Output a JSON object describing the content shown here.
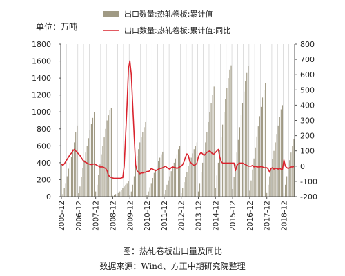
{
  "chart_data": {
    "type": "bar",
    "unit_label": "单位：万吨",
    "left_axis": {
      "min": 0,
      "max": 1800,
      "ticks": [
        "0",
        "200",
        "400",
        "600",
        "800",
        "1000",
        "1200",
        "1400",
        "1600",
        "1800"
      ]
    },
    "right_axis": {
      "min": -200,
      "max": 800,
      "ticks": [
        "-200",
        "-100",
        "0",
        "100",
        "200",
        "300",
        "400",
        "500",
        "600",
        "700",
        "800"
      ]
    },
    "x_tick_labels": [
      "2005-12",
      "2006-12",
      "2007-12",
      "2008-12",
      "2009-12",
      "2010-12",
      "2011-12",
      "2012-12",
      "2013-12",
      "2014-12",
      "2015-12",
      "2016-12",
      "2017-12",
      "2018-12"
    ],
    "legend": [
      "出口数量:热轧卷板:累计值",
      "出口数量:热轧卷板:累计值:同比"
    ],
    "series": [
      {
        "name": "出口数量:热轧卷板:累计值",
        "kind": "bar",
        "axis": "left",
        "color": "#a09a84",
        "values": [
          390,
          30,
          100,
          160,
          240,
          330,
          400,
          470,
          560,
          640,
          760,
          840,
          40,
          120,
          230,
          340,
          430,
          520,
          600,
          690,
          790,
          860,
          930,
          1000,
          60,
          140,
          260,
          380,
          500,
          600,
          700,
          800,
          900,
          960,
          1020,
          1050,
          10,
          20,
          30,
          40,
          50,
          60,
          80,
          100,
          120,
          140,
          160,
          180,
          20,
          60,
          140,
          240,
          360,
          480,
          560,
          640,
          700,
          760,
          820,
          880,
          20,
          60,
          110,
          160,
          220,
          280,
          320,
          370,
          420,
          460,
          500,
          530,
          30,
          80,
          140,
          190,
          240,
          300,
          350,
          400,
          450,
          500,
          560,
          600,
          40,
          100,
          170,
          230,
          290,
          360,
          410,
          460,
          510,
          560,
          600,
          640,
          60,
          160,
          290,
          400,
          520,
          640,
          760,
          880,
          1000,
          1100,
          1200,
          1300,
          100,
          250,
          400,
          550,
          700,
          850,
          1000,
          1150,
          1280,
          1400,
          1500,
          1550,
          90,
          230,
          380,
          520,
          670,
          820,
          960,
          1100,
          1240,
          1360,
          1460,
          1540,
          70,
          190,
          320,
          450,
          580,
          710,
          830,
          950,
          1060,
          1170,
          1260,
          1340,
          50,
          140,
          240,
          340,
          440,
          540,
          640,
          740,
          840,
          940,
          1030,
          1080,
          40,
          140,
          240,
          340,
          430,
          520,
          600,
          680
        ]
      },
      {
        "name": "出口数量:热轧卷板:累计值:同比",
        "kind": "line",
        "axis": "right",
        "color": "#d9232d",
        "values": [
          15,
          5,
          15,
          30,
          45,
          60,
          75,
          85,
          100,
          110,
          100,
          90,
          80,
          70,
          55,
          40,
          30,
          25,
          20,
          15,
          12,
          10,
          12,
          15,
          10,
          5,
          0,
          -5,
          -5,
          -5,
          -10,
          -15,
          -30,
          -60,
          -70,
          -75,
          -78,
          -80,
          -80,
          -80,
          -80,
          -80,
          -78,
          -75,
          0,
          200,
          400,
          640,
          690,
          600,
          400,
          200,
          10,
          -30,
          -40,
          -50,
          -45,
          -45,
          -40,
          -40,
          -35,
          -35,
          -30,
          -15,
          -20,
          -25,
          -30,
          -25,
          -20,
          -15,
          -15,
          -10,
          -5,
          0,
          -10,
          -15,
          -20,
          -10,
          -5,
          -8,
          -10,
          -15,
          -10,
          -5,
          0,
          10,
          30,
          60,
          80,
          70,
          30,
          20,
          10,
          5,
          10,
          20,
          60,
          80,
          90,
          80,
          70,
          80,
          90,
          95,
          100,
          90,
          80,
          80,
          90,
          100,
          110,
          60,
          30,
          20,
          20,
          20,
          20,
          20,
          20,
          20,
          20,
          20,
          -30,
          5,
          15,
          20,
          20,
          20,
          15,
          10,
          5,
          0,
          0,
          0,
          5,
          -5,
          0,
          -5,
          -5,
          -5,
          -3,
          -5,
          -10,
          -10,
          -10,
          -20,
          -40,
          -15,
          -10,
          -20,
          -15,
          -15,
          -20,
          -15,
          -20,
          -20,
          40,
          0,
          -10,
          -15,
          -10,
          -5,
          -5,
          -3
        ]
      }
    ]
  },
  "caption": {
    "title": "图：热轧卷板出口量及同比",
    "source": "数据来源：Wind、方正中期研究院整理"
  }
}
